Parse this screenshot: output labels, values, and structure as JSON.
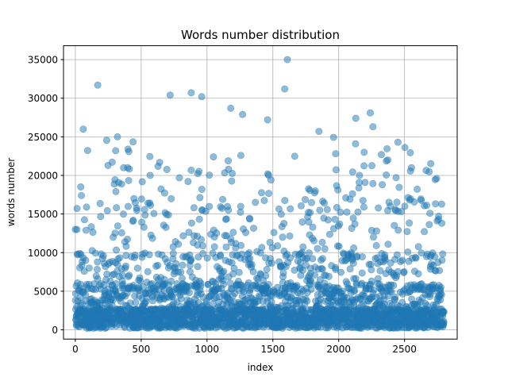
{
  "chart_data": {
    "type": "scatter",
    "title": "Words number distribution",
    "xlabel": "index",
    "ylabel": "words number",
    "xlim": [
      -90,
      2900
    ],
    "ylim": [
      -1200,
      36800
    ],
    "x_ticks": [
      0,
      500,
      1000,
      1500,
      2000,
      2500
    ],
    "y_ticks": [
      0,
      5000,
      10000,
      15000,
      20000,
      25000,
      30000,
      35000
    ],
    "x_tick_labels": [
      "0",
      "500",
      "1000",
      "1500",
      "2000",
      "2500"
    ],
    "y_tick_labels": [
      "0",
      "5000",
      "10000",
      "15000",
      "20000",
      "25000",
      "30000",
      "35000"
    ],
    "grid": true,
    "marker_color": "#1f77b4",
    "marker_alpha": 0.5,
    "n_points": 2800,
    "notable_points": [
      {
        "x": 170,
        "y": 31700
      },
      {
        "x": 60,
        "y": 26000
      },
      {
        "x": 320,
        "y": 25000
      },
      {
        "x": 720,
        "y": 30400
      },
      {
        "x": 880,
        "y": 30700
      },
      {
        "x": 960,
        "y": 30200
      },
      {
        "x": 1180,
        "y": 28700
      },
      {
        "x": 1270,
        "y": 27900
      },
      {
        "x": 1460,
        "y": 27200
      },
      {
        "x": 1590,
        "y": 31200
      },
      {
        "x": 1610,
        "y": 35000
      },
      {
        "x": 1850,
        "y": 25700
      },
      {
        "x": 2130,
        "y": 27400
      },
      {
        "x": 2240,
        "y": 28100
      },
      {
        "x": 2260,
        "y": 26300
      },
      {
        "x": 2450,
        "y": 24300
      }
    ]
  }
}
